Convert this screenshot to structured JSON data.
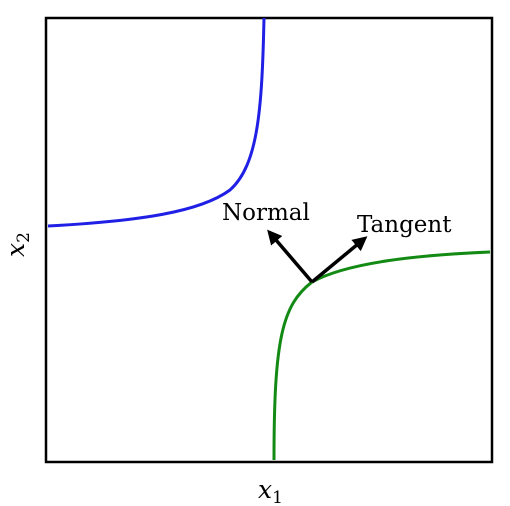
{
  "annotations": {
    "normal_label": "Normal",
    "tangent_label": "Tangent"
  },
  "axes": {
    "x_label_base": "x",
    "x_label_sub": "1",
    "y_label_base": "x",
    "y_label_sub": "2",
    "ticks": false
  },
  "colors": {
    "upper_curve": "#1f1fe6",
    "lower_curve": "#138a13",
    "arrows": "#000000",
    "frame": "#000000"
  },
  "icons": {
    "normal_vector": "arrow-up-left-icon",
    "tangent_vector": "arrow-up-right-icon"
  }
}
